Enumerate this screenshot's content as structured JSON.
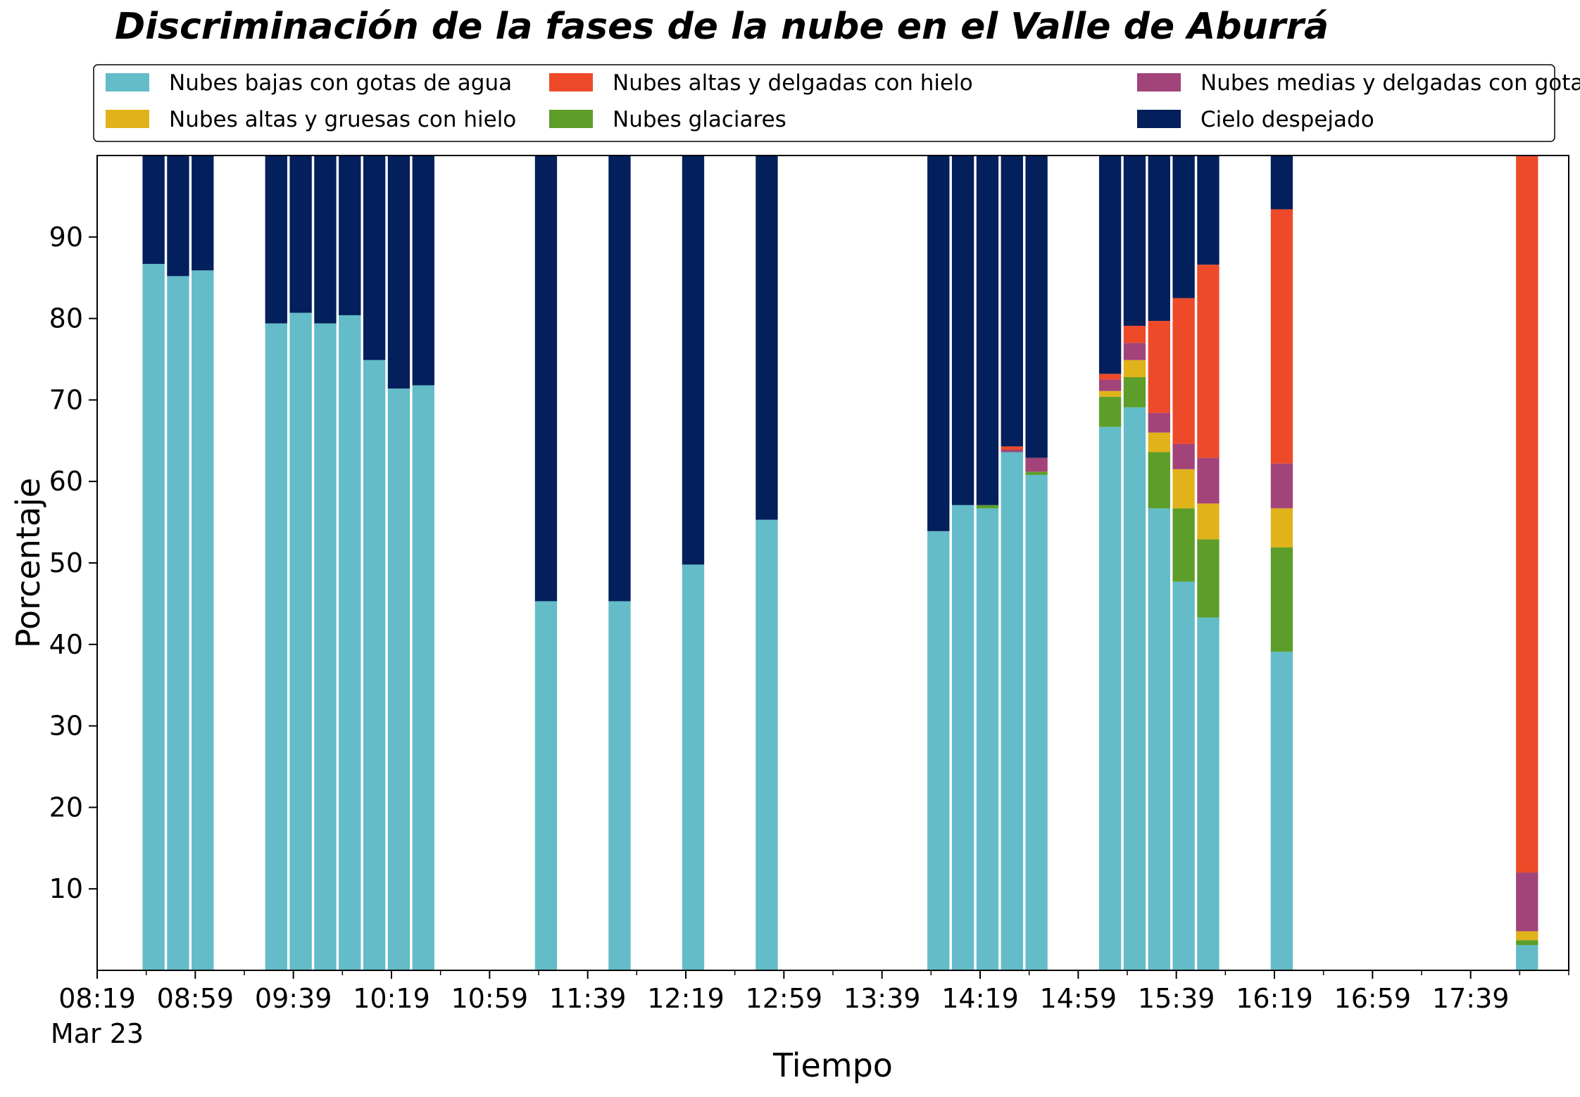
{
  "chart_data": {
    "type": "bar",
    "stacked": true,
    "title": "Discriminación de la fases de la nube en el Valle de Aburrá",
    "xlabel": "Tiempo",
    "ylabel": "Porcentaje",
    "ylim": [
      0,
      100
    ],
    "yticks": [
      10,
      20,
      30,
      40,
      50,
      60,
      70,
      80,
      90
    ],
    "xlim_minutes": [
      0,
      600
    ],
    "x_unit": "minutes after 08:19",
    "xticks": [
      {
        "minute": 0,
        "label": "08:19",
        "sublabel": "Mar 23"
      },
      {
        "minute": 40,
        "label": "08:59",
        "sublabel": ""
      },
      {
        "minute": 80,
        "label": "09:39",
        "sublabel": ""
      },
      {
        "minute": 120,
        "label": "10:19",
        "sublabel": ""
      },
      {
        "minute": 160,
        "label": "10:59",
        "sublabel": ""
      },
      {
        "minute": 200,
        "label": "11:39",
        "sublabel": ""
      },
      {
        "minute": 240,
        "label": "12:19",
        "sublabel": ""
      },
      {
        "minute": 280,
        "label": "12:59",
        "sublabel": ""
      },
      {
        "minute": 320,
        "label": "13:39",
        "sublabel": ""
      },
      {
        "minute": 360,
        "label": "14:19",
        "sublabel": ""
      },
      {
        "minute": 400,
        "label": "14:59",
        "sublabel": ""
      },
      {
        "minute": 440,
        "label": "15:39",
        "sublabel": ""
      },
      {
        "minute": 480,
        "label": "16:19",
        "sublabel": ""
      },
      {
        "minute": 520,
        "label": "16:59",
        "sublabel": ""
      },
      {
        "minute": 560,
        "label": "17:39",
        "sublabel": ""
      }
    ],
    "minor_tick_step_minutes": 20,
    "bar_width_minutes": 9,
    "legend": {
      "placement": "top-center, above plot",
      "columns": 3
    },
    "series": [
      {
        "name": "Nubes bajas con gotas de agua",
        "color": "#63BCC8"
      },
      {
        "name": "Nubes glaciares",
        "color": "#5D9E2A"
      },
      {
        "name": "Nubes altas y gruesas con hielo",
        "color": "#E1B31A"
      },
      {
        "name": "Nubes medias y delgadas con gotas de agua",
        "color": "#A2437A"
      },
      {
        "name": "Nubes altas y delgadas con hielo",
        "color": "#EE4A2A"
      },
      {
        "name": "Cielo despejado",
        "color": "#031F5C"
      }
    ],
    "legend_order": [
      0,
      2,
      4,
      1,
      3,
      5
    ],
    "bars": [
      {
        "time": "08:42",
        "values": [
          86.7,
          0,
          0,
          0,
          0,
          13.3
        ]
      },
      {
        "time": "08:52",
        "values": [
          85.2,
          0,
          0,
          0,
          0,
          14.8
        ]
      },
      {
        "time": "09:02",
        "values": [
          85.9,
          0,
          0,
          0,
          0,
          14.1
        ]
      },
      {
        "time": "09:32",
        "values": [
          79.4,
          0,
          0,
          0,
          0,
          20.6
        ]
      },
      {
        "time": "09:42",
        "values": [
          80.7,
          0,
          0,
          0,
          0,
          19.3
        ]
      },
      {
        "time": "09:52",
        "values": [
          79.4,
          0,
          0,
          0,
          0,
          20.6
        ]
      },
      {
        "time": "10:02",
        "values": [
          80.4,
          0,
          0,
          0,
          0,
          19.6
        ]
      },
      {
        "time": "10:12",
        "values": [
          74.9,
          0,
          0,
          0,
          0,
          25.1
        ]
      },
      {
        "time": "10:22",
        "values": [
          71.4,
          0,
          0,
          0,
          0,
          28.6
        ]
      },
      {
        "time": "10:32",
        "values": [
          71.8,
          0,
          0,
          0,
          0,
          28.2
        ]
      },
      {
        "time": "11:22",
        "values": [
          45.3,
          0,
          0,
          0,
          0,
          54.7
        ]
      },
      {
        "time": "11:52",
        "values": [
          45.3,
          0,
          0,
          0,
          0,
          54.7
        ]
      },
      {
        "time": "12:22",
        "values": [
          49.8,
          0,
          0,
          0,
          0,
          50.2
        ]
      },
      {
        "time": "12:52",
        "values": [
          55.3,
          0,
          0,
          0,
          0,
          44.7
        ]
      },
      {
        "time": "14:02",
        "values": [
          53.9,
          0,
          0,
          0,
          0,
          46.1
        ]
      },
      {
        "time": "14:12",
        "values": [
          57.1,
          0,
          0,
          0,
          0,
          42.9
        ]
      },
      {
        "time": "14:22",
        "values": [
          56.7,
          0.4,
          0,
          0,
          0,
          42.9
        ]
      },
      {
        "time": "14:32",
        "values": [
          63.6,
          0,
          0,
          0.3,
          0.4,
          35.7
        ]
      },
      {
        "time": "14:42",
        "values": [
          60.8,
          0.4,
          0,
          1.7,
          0,
          37.1
        ]
      },
      {
        "time": "15:12",
        "values": [
          66.7,
          3.7,
          0.7,
          1.4,
          0.7,
          26.8
        ]
      },
      {
        "time": "15:22",
        "values": [
          69.1,
          3.7,
          2.1,
          2.1,
          2.1,
          20.9
        ]
      },
      {
        "time": "15:32",
        "values": [
          56.7,
          6.9,
          2.4,
          2.4,
          11.3,
          20.3
        ]
      },
      {
        "time": "15:42",
        "values": [
          47.7,
          9.0,
          4.8,
          3.1,
          17.9,
          17.5
        ]
      },
      {
        "time": "15:52",
        "values": [
          43.3,
          9.6,
          4.4,
          5.6,
          23.7,
          13.4
        ]
      },
      {
        "time": "16:22",
        "values": [
          39.1,
          12.8,
          4.8,
          5.5,
          31.2,
          6.6
        ]
      },
      {
        "time": "18:02",
        "values": [
          3.1,
          0.6,
          1.1,
          7.2,
          88.0,
          0
        ]
      }
    ]
  }
}
